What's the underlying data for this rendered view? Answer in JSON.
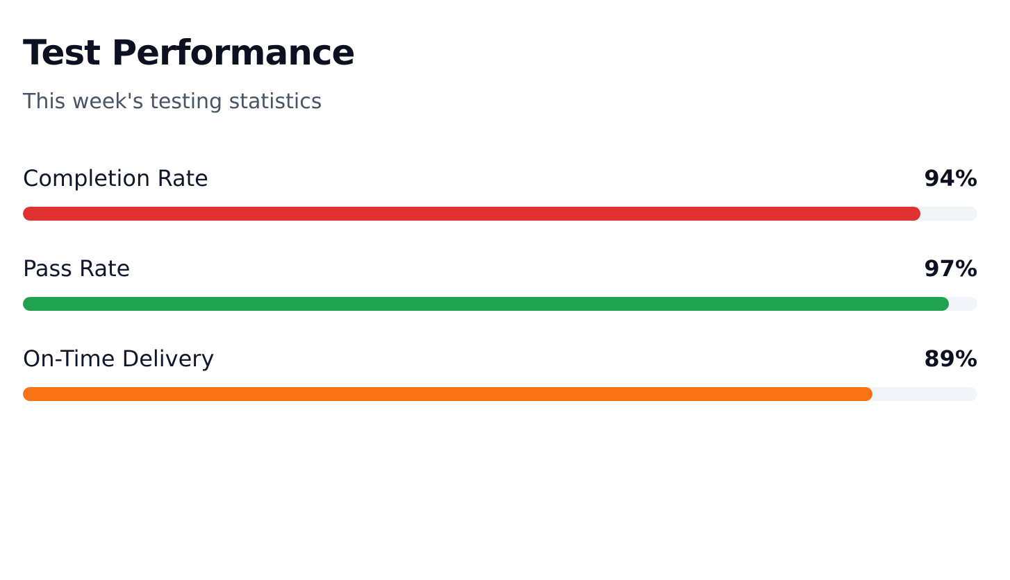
{
  "header": {
    "title": "Test Performance",
    "subtitle": "This week's testing statistics"
  },
  "metrics": [
    {
      "label": "Completion Rate",
      "value_text": "94%",
      "progress": 0.94,
      "color": "#e03131"
    },
    {
      "label": "Pass Rate",
      "value_text": "97%",
      "progress": 0.97,
      "color": "#1fa34f"
    },
    {
      "label": "On-Time Delivery",
      "value_text": "89%",
      "progress": 0.89,
      "color": "#f97316"
    }
  ],
  "colors": {
    "track": "#f1f5f9",
    "title": "#0b1120",
    "subtitle": "#475569"
  }
}
